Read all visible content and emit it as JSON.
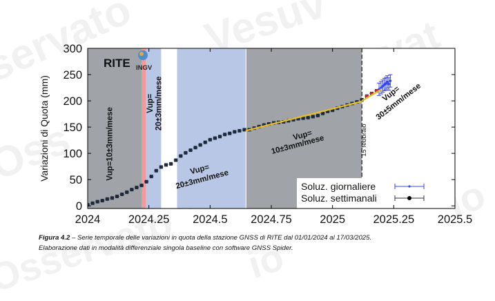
{
  "watermarks": [
    "servato",
    "Vesuv",
    "Oss",
    "ervat",
    "Vesuv",
    "io",
    "Osservato",
    "io"
  ],
  "caption": {
    "label": "Figura 4.2",
    "line1": " – Serie temporale delle variazioni in quota della stazione GNSS di RITE dal 01/01/2024 al 17/03/2025.",
    "line2": "Elaborazione dati in modalità differenziale singola baseline con software GNSS Spider."
  },
  "chart_data": {
    "type": "scatter",
    "title": "",
    "station_label": "RITE",
    "logo_text": "INGV",
    "xlabel": "",
    "ylabel": "Variazioni di Quota (mm)",
    "xlim": [
      2024,
      2025.5
    ],
    "ylim": [
      -5,
      300
    ],
    "xticks": [
      2024,
      2024.25,
      2024.5,
      2024.75,
      2025,
      2025.25,
      2025.5
    ],
    "xtick_labels": [
      "2024",
      "2024.25",
      "2024.5",
      "2024.75",
      "2025",
      "2025.25",
      "2025.5"
    ],
    "yticks": [
      0,
      50,
      100,
      150,
      200,
      250,
      300
    ],
    "ytick_labels": [
      "0",
      "50",
      "100",
      "150",
      "200",
      "250",
      "300"
    ],
    "colors": {
      "gray_band": "#a0a3a8",
      "blue_band": "#b9c7e6",
      "red_band": "#f09a9a",
      "weekly": "#1e2a3c",
      "daily": "#3344ee",
      "fit": "#e8c020",
      "red_points": "#cc2233"
    },
    "bands": [
      {
        "from": 2024.0,
        "to": 2024.222,
        "kind": "gray"
      },
      {
        "from": 2024.222,
        "to": 2024.238,
        "kind": "red"
      },
      {
        "from": 2024.238,
        "to": 2024.3,
        "kind": "blue"
      },
      {
        "from": 2024.365,
        "to": 2024.645,
        "kind": "blue"
      },
      {
        "from": 2024.648,
        "to": 2025.12,
        "kind": "gray"
      }
    ],
    "event_line": {
      "x": 2025.12,
      "label": "15 febbraio"
    },
    "annotations": [
      {
        "text": "Vup=10±3mm/mese",
        "x": 2024.1,
        "y": 118,
        "rotate": -90
      },
      {
        "text": "Vup=",
        "x": 2024.265,
        "y": 195,
        "rotate": -90
      },
      {
        "text": "20±3mm/mese",
        "x": 2024.3,
        "y": 195,
        "rotate": -90
      },
      {
        "text": "Vup=",
        "x": 2024.46,
        "y": 65,
        "rotate": -15
      },
      {
        "text": "20±3mm/mese",
        "x": 2024.47,
        "y": 46,
        "rotate": -15
      },
      {
        "text": "Vup=",
        "x": 2024.88,
        "y": 130,
        "rotate": -15
      },
      {
        "text": "10±3mm/mese",
        "x": 2024.86,
        "y": 112,
        "rotate": -15
      },
      {
        "text": "Vup=",
        "x": 2025.245,
        "y": 210,
        "rotate": -38
      },
      {
        "text": "30±5mm/mese",
        "x": 2025.275,
        "y": 195,
        "rotate": -38
      }
    ],
    "legend": {
      "placement": "bottom-right",
      "entries": [
        {
          "name": "Soluz. giornaliere",
          "series": "daily"
        },
        {
          "name": "Soluz. settimanali",
          "series": "weekly"
        }
      ]
    },
    "fits": [
      {
        "name": "fit-2024.65-2025.12",
        "x": [
          2024.645,
          2025.12
        ],
        "y": [
          143,
          199
        ]
      },
      {
        "name": "fit-2025.12-end",
        "x": [
          2025.12,
          2025.2
        ],
        "y": [
          200,
          222
        ]
      }
    ],
    "series": [
      {
        "name": "Soluz. settimanali",
        "id": "weekly",
        "x": [
          2024.0,
          2024.02,
          2024.04,
          2024.06,
          2024.08,
          2024.1,
          2024.12,
          2024.14,
          2024.16,
          2024.18,
          2024.2,
          2024.22,
          2024.24,
          2024.26,
          2024.28,
          2024.3,
          2024.32,
          2024.34,
          2024.36,
          2024.38,
          2024.4,
          2024.42,
          2024.44,
          2024.46,
          2024.48,
          2024.5,
          2024.52,
          2024.54,
          2024.56,
          2024.58,
          2024.6,
          2024.62,
          2024.64,
          2024.66,
          2024.68,
          2024.7,
          2024.72,
          2024.74,
          2024.76,
          2024.78,
          2024.8,
          2024.82,
          2024.84,
          2024.86,
          2024.88,
          2024.9,
          2024.92,
          2024.94,
          2024.96,
          2024.98,
          2025.0,
          2025.02,
          2025.04,
          2025.06,
          2025.08,
          2025.1,
          2025.12,
          2025.14,
          2025.16,
          2025.18
        ],
        "y": [
          2,
          5,
          8,
          10,
          13,
          15,
          18,
          22,
          26,
          31,
          35,
          39,
          46,
          56,
          67,
          74,
          78,
          80,
          87,
          95,
          101,
          106,
          111,
          116,
          121,
          126,
          129,
          132,
          136,
          138,
          141,
          143,
          145,
          145,
          148,
          151,
          154,
          156,
          158,
          159,
          160,
          162,
          164,
          166,
          167,
          168,
          170,
          172,
          176,
          180,
          182,
          186,
          189,
          192,
          195,
          198,
          202,
          209,
          214,
          219
        ]
      },
      {
        "name": "Soluz. giornaliere",
        "id": "daily",
        "x": [
          2025.19,
          2025.198,
          2025.205,
          2025.212,
          2025.218,
          2025.224,
          2025.23,
          2025.236
        ],
        "y": [
          222,
          225,
          228,
          231,
          233,
          236,
          232,
          238
        ]
      }
    ]
  }
}
